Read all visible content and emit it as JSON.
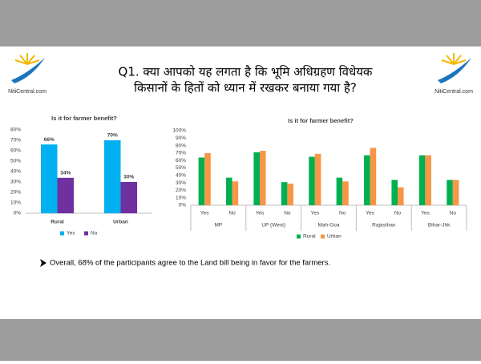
{
  "header": {
    "logo_text": "NitiCentral.com",
    "title_lines": [
      "Q1. क्या आपको यह लगता है कि भूमि अधिग्रहण विधेयक",
      "किसानों के हितों को ध्यान में रखकर बनाया गया है?"
    ]
  },
  "chart_data": [
    {
      "type": "bar",
      "title": "Is it for farmer benefit?",
      "categories": [
        "Rural",
        "Urban"
      ],
      "series": [
        {
          "name": "Yes",
          "color": "#00b0f0",
          "values": [
            66,
            70
          ],
          "value_labels": [
            "66%",
            "70%"
          ]
        },
        {
          "name": "No",
          "color": "#7030a0",
          "values": [
            34,
            30
          ],
          "value_labels": [
            "34%",
            "30%"
          ]
        }
      ],
      "ylim": [
        0,
        80
      ],
      "yticks": [
        {
          "value": 0,
          "label": "0%"
        },
        {
          "value": 10,
          "label": "10%"
        },
        {
          "value": 20,
          "label": "20%"
        },
        {
          "value": 30,
          "label": "30%"
        },
        {
          "value": 40,
          "label": "40%"
        },
        {
          "value": 50,
          "label": "50%"
        },
        {
          "value": 60,
          "label": "60%"
        },
        {
          "value": 70,
          "label": "70%"
        },
        {
          "value": 80,
          "label": "80%"
        }
      ],
      "grid": false,
      "legend": "bottom"
    },
    {
      "type": "bar",
      "title": "Is it for farmer benefit?",
      "categories": [
        "Yes",
        "No",
        "Yes",
        "No",
        "Yes",
        "No",
        "Yes",
        "No",
        "Yes",
        "No"
      ],
      "groups": [
        "MP",
        "UP (West)",
        "Mah-Goa",
        "Rajasthan",
        "Bihar-Jhk"
      ],
      "series": [
        {
          "name": "Rural",
          "color": "#00b050",
          "values": [
            64,
            37,
            71,
            31,
            65,
            37,
            67,
            34,
            67,
            34
          ]
        },
        {
          "name": "Urban",
          "color": "#f79646",
          "values": [
            70,
            32,
            73,
            29,
            69,
            32,
            77,
            24,
            67,
            34
          ]
        }
      ],
      "ylim": [
        0,
        100
      ],
      "yticks": [
        {
          "value": 0,
          "label": "0%"
        },
        {
          "value": 10,
          "label": "10%"
        },
        {
          "value": 20,
          "label": "20%"
        },
        {
          "value": 30,
          "label": "30%"
        },
        {
          "value": 40,
          "label": "40%"
        },
        {
          "value": 50,
          "label": "50%"
        },
        {
          "value": 60,
          "label": "60%"
        },
        {
          "value": 70,
          "label": "70%"
        },
        {
          "value": 80,
          "label": "80%"
        },
        {
          "value": 90,
          "label": "90%"
        },
        {
          "value": 100,
          "label": "100%"
        }
      ],
      "grid": false,
      "legend": "bottom"
    }
  ],
  "note": "Overall, 68% of the participants agree to the Land bill being in favor for the farmers."
}
